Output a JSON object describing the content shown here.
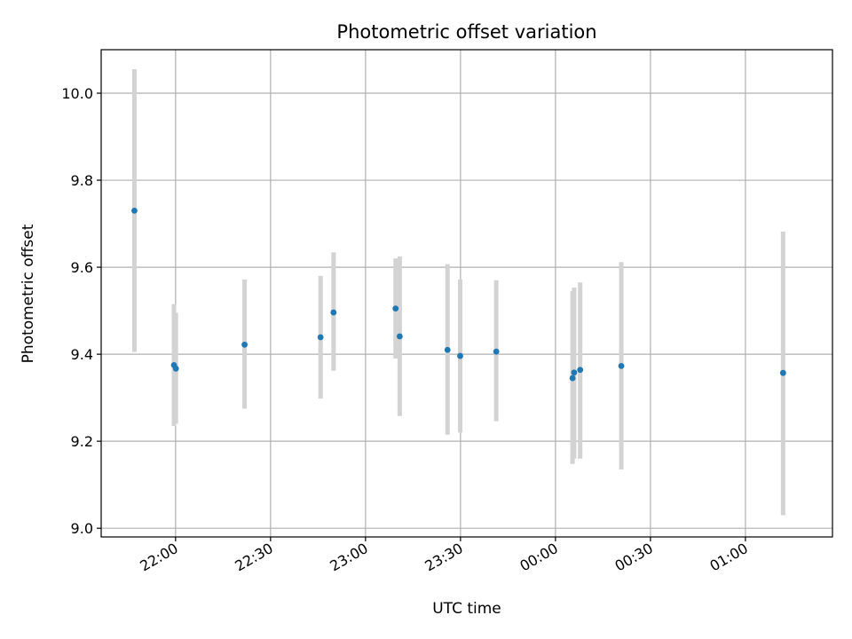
{
  "chart_data": {
    "type": "scatter",
    "title": "Photometric offset variation",
    "xlabel": "UTC time",
    "ylabel": "Photometric offset",
    "x_tick_labels": [
      "22:00",
      "22:30",
      "23:00",
      "23:30",
      "00:00",
      "00:30",
      "01:00"
    ],
    "x_tick_minutes": [
      0,
      30,
      60,
      90,
      120,
      150,
      180
    ],
    "x_range_minutes": [
      -23.5,
      207.5
    ],
    "y_ticks": [
      9.0,
      9.2,
      9.4,
      9.6,
      9.8,
      10.0
    ],
    "y_tick_labels": [
      "9.0",
      "9.2",
      "9.4",
      "9.6",
      "9.8",
      "10.0"
    ],
    "ylim": [
      8.98,
      10.1
    ],
    "grid": true,
    "colors": {
      "points": "#1f77b4",
      "errorbars": "#d3d3d3",
      "grid": "#b0b0b0"
    },
    "points": [
      {
        "t": -13.0,
        "y": 9.73,
        "ylo": 9.405,
        "yhi": 10.055
      },
      {
        "t": -0.5,
        "y": 9.375,
        "ylo": 9.235,
        "yhi": 9.515
      },
      {
        "t": 0.1,
        "y": 9.367,
        "ylo": 9.24,
        "yhi": 9.495
      },
      {
        "t": 21.8,
        "y": 9.422,
        "ylo": 9.275,
        "yhi": 9.572
      },
      {
        "t": 45.8,
        "y": 9.439,
        "ylo": 9.298,
        "yhi": 9.58
      },
      {
        "t": 49.9,
        "y": 9.496,
        "ylo": 9.362,
        "yhi": 9.634
      },
      {
        "t": 69.5,
        "y": 9.505,
        "ylo": 9.39,
        "yhi": 9.62
      },
      {
        "t": 70.8,
        "y": 9.441,
        "ylo": 9.258,
        "yhi": 9.625
      },
      {
        "t": 85.9,
        "y": 9.41,
        "ylo": 9.215,
        "yhi": 9.607
      },
      {
        "t": 89.9,
        "y": 9.396,
        "ylo": 9.22,
        "yhi": 9.572
      },
      {
        "t": 101.3,
        "y": 9.406,
        "ylo": 9.246,
        "yhi": 9.57
      },
      {
        "t": 125.4,
        "y": 9.345,
        "ylo": 9.148,
        "yhi": 9.545
      },
      {
        "t": 125.9,
        "y": 9.358,
        "ylo": 9.16,
        "yhi": 9.553
      },
      {
        "t": 127.8,
        "y": 9.364,
        "ylo": 9.16,
        "yhi": 9.565
      },
      {
        "t": 140.8,
        "y": 9.373,
        "ylo": 9.135,
        "yhi": 9.612
      },
      {
        "t": 191.9,
        "y": 9.357,
        "ylo": 9.03,
        "yhi": 9.682
      }
    ]
  }
}
